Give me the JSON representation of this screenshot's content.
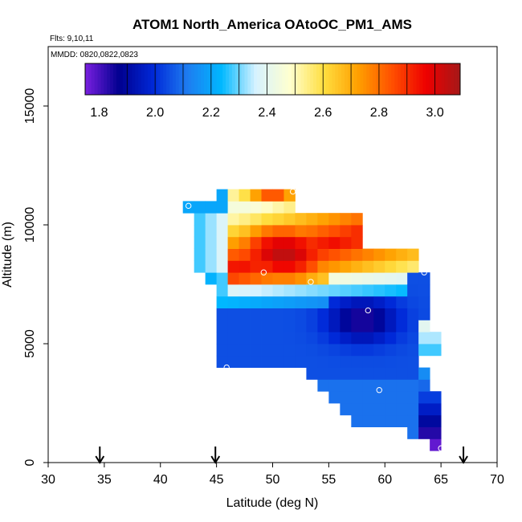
{
  "chart_data": {
    "type": "heatmap",
    "title": "ATOM1 North_America OAtoOC_PM1_AMS",
    "flights_label": "Flts: 9,10,11",
    "dates_label": "MMDD: 0820,0822,0823",
    "xlabel": "Latitude (deg N)",
    "ylabel": "Altitude (m)",
    "xlim": [
      30,
      70
    ],
    "ylim": [
      0,
      17500
    ],
    "x_ticks": [
      30,
      35,
      40,
      45,
      50,
      55,
      60,
      65,
      70
    ],
    "y_ticks": [
      0,
      5000,
      10000,
      15000
    ],
    "colorbar": {
      "min": 1.75,
      "max": 3.09,
      "ticks": [
        "1.8",
        "2.0",
        "2.2",
        "2.4",
        "2.6",
        "2.8",
        "3.0"
      ],
      "tick_values": [
        1.8,
        2.0,
        2.2,
        2.4,
        2.6,
        2.8,
        3.0
      ],
      "colors": [
        "#7a1fe0",
        "#00008f",
        "#0028d8",
        "#1e7cf0",
        "#00b8ff",
        "#d6f2ff",
        "#ffffd0",
        "#ffde40",
        "#ffa000",
        "#ff5000",
        "#ee0000",
        "#a51818"
      ]
    },
    "grid_step_lat": 1,
    "grid_step_alt": 500,
    "arrows_latitude": [
      34.6,
      44.9,
      67.0
    ],
    "flight_points": [
      {
        "lat": 47.5,
        "alt": 11900
      },
      {
        "lat": 42.5,
        "alt": 10800
      },
      {
        "lat": 51.8,
        "alt": 11400
      },
      {
        "lat": 49.2,
        "alt": 8000
      },
      {
        "lat": 53.4,
        "alt": 7600
      },
      {
        "lat": 58.5,
        "alt": 6400
      },
      {
        "lat": 63.5,
        "alt": 8000
      },
      {
        "lat": 45.9,
        "alt": 4000
      },
      {
        "lat": 59.5,
        "alt": 3050
      },
      {
        "lat": 65.3,
        "alt": 2150
      },
      {
        "lat": 65.0,
        "alt": 600
      }
    ]
  }
}
